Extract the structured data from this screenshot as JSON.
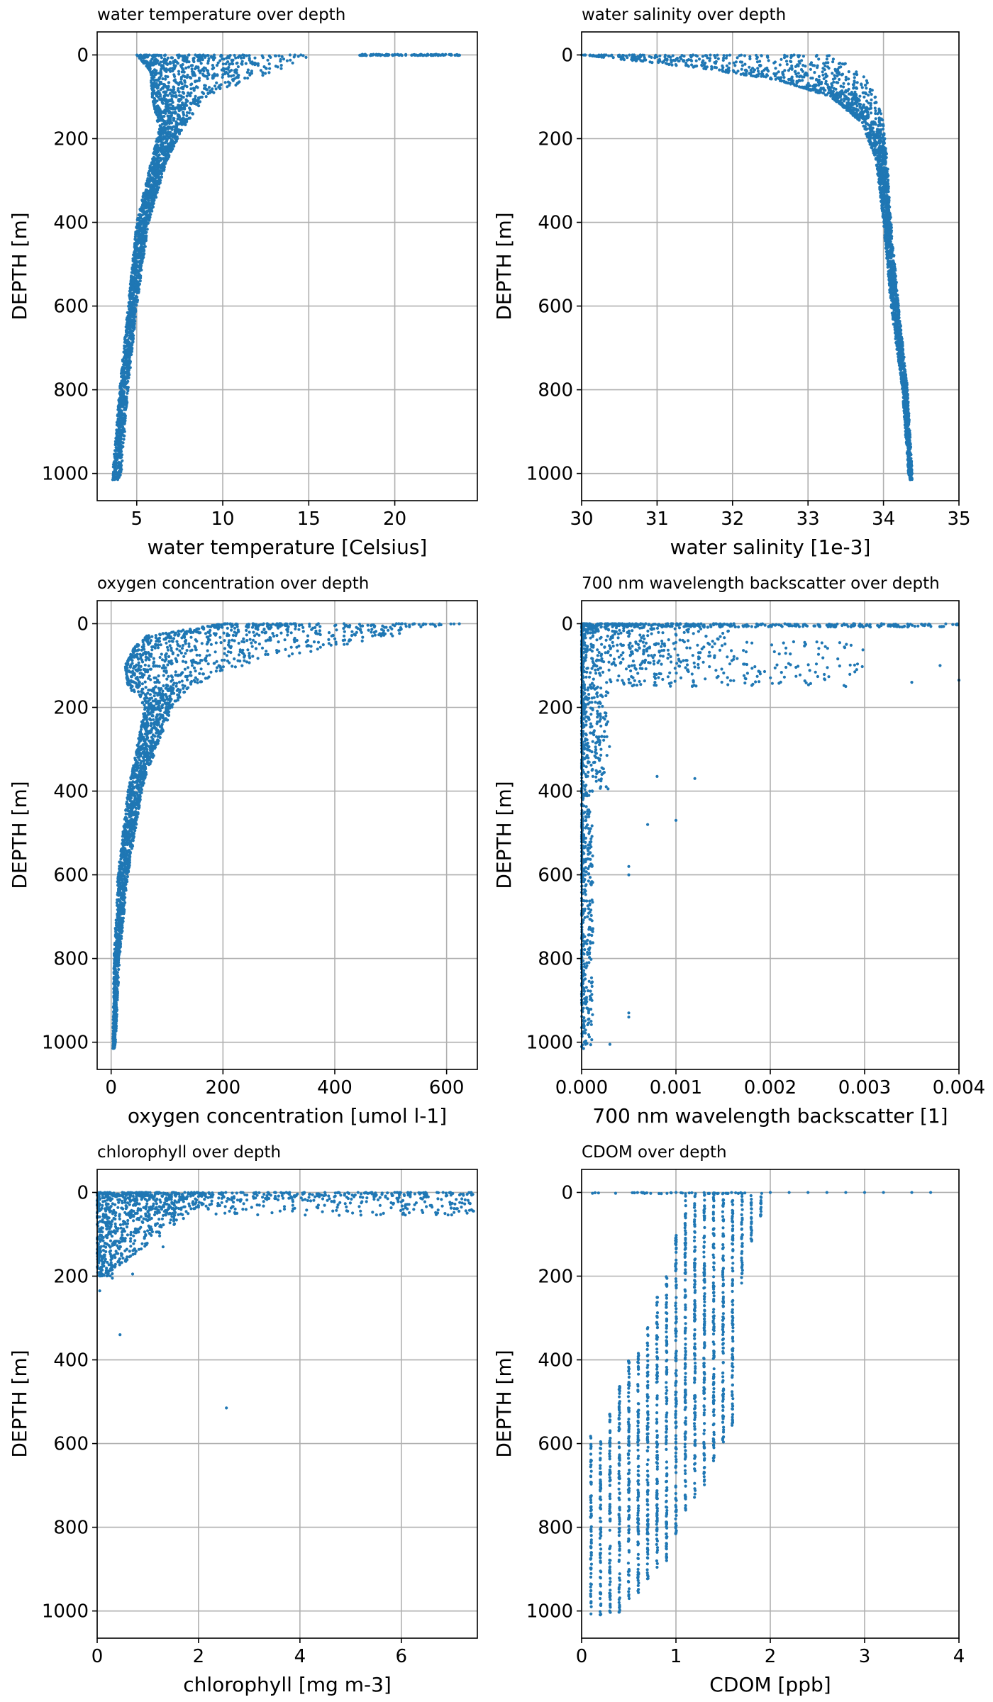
{
  "chart_data": [
    {
      "type": "scatter",
      "title": "water temperature over depth",
      "xlabel": "water temperature [Celsius]",
      "ylabel": "DEPTH [m]",
      "xlim": [
        2.7,
        24.8
      ],
      "ylim": [
        1065,
        -55
      ],
      "y_inverted": true,
      "xticks": [
        5,
        10,
        15,
        20
      ],
      "yticks": [
        0,
        200,
        400,
        600,
        800,
        1000
      ],
      "grid": true,
      "marker_color": "#1f77b4",
      "profile": [
        [
          0,
          5,
          15.3
        ],
        [
          40,
          5.8,
          13
        ],
        [
          100,
          5.9,
          9
        ],
        [
          180,
          6.3,
          7.6
        ],
        [
          260,
          5.8,
          6.7
        ],
        [
          400,
          5.0,
          5.7
        ],
        [
          600,
          4.5,
          5.0
        ],
        [
          800,
          4.0,
          4.5
        ],
        [
          1000,
          3.6,
          4.1
        ],
        [
          1015,
          3.6,
          3.9
        ]
      ],
      "surface_band": {
        "y": 0,
        "x": [
          17.8,
          23.8
        ]
      }
    },
    {
      "type": "scatter",
      "title": "water salinity over depth",
      "xlabel": "water salinity [1e-3]",
      "ylabel": "DEPTH [m]",
      "xlim": [
        30,
        35
      ],
      "ylim": [
        1065,
        -55
      ],
      "y_inverted": true,
      "xticks": [
        30,
        31,
        32,
        33,
        34,
        35
      ],
      "yticks": [
        0,
        200,
        400,
        600,
        800,
        1000
      ],
      "grid": true,
      "marker_color": "#1f77b4",
      "profile": [
        [
          0,
          30.0,
          33.3
        ],
        [
          30,
          31.5,
          33.6
        ],
        [
          60,
          32.6,
          33.8
        ],
        [
          100,
          33.3,
          33.9
        ],
        [
          160,
          33.7,
          34.0
        ],
        [
          250,
          33.9,
          34.05
        ],
        [
          400,
          34.0,
          34.1
        ],
        [
          600,
          34.1,
          34.2
        ],
        [
          800,
          34.25,
          34.32
        ],
        [
          1000,
          34.33,
          34.38
        ],
        [
          1015,
          34.35,
          34.38
        ]
      ],
      "surface_band": null
    },
    {
      "type": "scatter",
      "title": "oxygen concentration over depth",
      "xlabel": "oxygen concentration [umol l-1]",
      "ylabel": "DEPTH [m]",
      "xlim": [
        -25,
        655
      ],
      "ylim": [
        1065,
        -55
      ],
      "y_inverted": true,
      "xticks": [
        0,
        200,
        400,
        600
      ],
      "yticks": [
        0,
        200,
        400,
        600,
        800,
        1000
      ],
      "grid": true,
      "marker_color": "#1f77b4",
      "profile": [
        [
          0,
          200,
          630
        ],
        [
          30,
          60,
          500
        ],
        [
          60,
          40,
          380
        ],
        [
          100,
          25,
          240
        ],
        [
          150,
          30,
          140
        ],
        [
          200,
          60,
          110
        ],
        [
          300,
          45,
          80
        ],
        [
          400,
          30,
          55
        ],
        [
          600,
          12,
          30
        ],
        [
          800,
          5,
          15
        ],
        [
          1000,
          3,
          8
        ],
        [
          1015,
          3,
          6
        ]
      ],
      "surface_band": null
    },
    {
      "type": "scatter",
      "title": "700 nm wavelength backscatter over depth",
      "xlabel": "700 nm wavelength backscatter [1]",
      "ylabel": "DEPTH [m]",
      "xlim": [
        0,
        0.004
      ],
      "ylim": [
        1065,
        -55
      ],
      "y_inverted": true,
      "xticks": [
        0.0,
        0.001,
        0.002,
        0.003,
        0.004
      ],
      "xticklabels": [
        "0.000",
        "0.001",
        "0.002",
        "0.003",
        "0.004"
      ],
      "yticks": [
        0,
        200,
        400,
        600,
        800,
        1000
      ],
      "grid": true,
      "marker_color": "#1f77b4",
      "outliers": [
        [
          0.0008,
          365
        ],
        [
          0.0012,
          370
        ],
        [
          0.0007,
          480
        ],
        [
          0.001,
          470
        ],
        [
          0.0005,
          580
        ],
        [
          0.0005,
          600
        ],
        [
          0.0001,
          950
        ],
        [
          0.0005,
          930
        ],
        [
          0.0005,
          940
        ],
        [
          0.0003,
          1005
        ],
        [
          0.0038,
          100
        ],
        [
          0.0035,
          140
        ],
        [
          0.004,
          135
        ],
        [
          0.0028,
          150
        ]
      ]
    },
    {
      "type": "scatter",
      "title": "chlorophyll over depth",
      "xlabel": "chlorophyll [mg m-3]",
      "ylabel": "DEPTH [m]",
      "xlim": [
        0,
        7.5
      ],
      "ylim": [
        1065,
        -55
      ],
      "y_inverted": true,
      "xticks": [
        0,
        2,
        4,
        6
      ],
      "yticks": [
        0,
        200,
        400,
        600,
        800,
        1000
      ],
      "grid": true,
      "marker_color": "#1f77b4",
      "outliers": [
        [
          0.45,
          340
        ],
        [
          2.55,
          515
        ],
        [
          0.7,
          195
        ],
        [
          0.3,
          205
        ],
        [
          0.05,
          235
        ],
        [
          1.3,
          130
        ]
      ]
    },
    {
      "type": "scatter",
      "title": "CDOM over depth",
      "xlabel": "CDOM [ppb]",
      "ylabel": "DEPTH [m]",
      "xlim": [
        0,
        4
      ],
      "ylim": [
        1065,
        -55
      ],
      "y_inverted": true,
      "xticks": [
        0,
        1,
        2,
        3,
        4
      ],
      "yticks": [
        0,
        200,
        400,
        600,
        800,
        1000
      ],
      "grid": true,
      "marker_color": "#1f77b4",
      "columns": [
        [
          0.1,
          580,
          1010
        ],
        [
          0.2,
          590,
          1010
        ],
        [
          0.3,
          520,
          1005
        ],
        [
          0.4,
          460,
          1010
        ],
        [
          0.5,
          400,
          980
        ],
        [
          0.6,
          380,
          960
        ],
        [
          0.7,
          320,
          930
        ],
        [
          0.8,
          250,
          900
        ],
        [
          0.9,
          200,
          880
        ],
        [
          1.0,
          100,
          820
        ],
        [
          1.1,
          0,
          760
        ],
        [
          1.2,
          0,
          730
        ],
        [
          1.3,
          0,
          700
        ],
        [
          1.4,
          0,
          650
        ],
        [
          1.5,
          0,
          600
        ],
        [
          1.6,
          0,
          560
        ],
        [
          1.7,
          0,
          220
        ],
        [
          1.8,
          0,
          120
        ],
        [
          1.9,
          0,
          60
        ]
      ],
      "surface_points": [
        2.0,
        2.2,
        2.4,
        2.6,
        2.8,
        3.0,
        3.2,
        3.5,
        3.7
      ]
    }
  ]
}
